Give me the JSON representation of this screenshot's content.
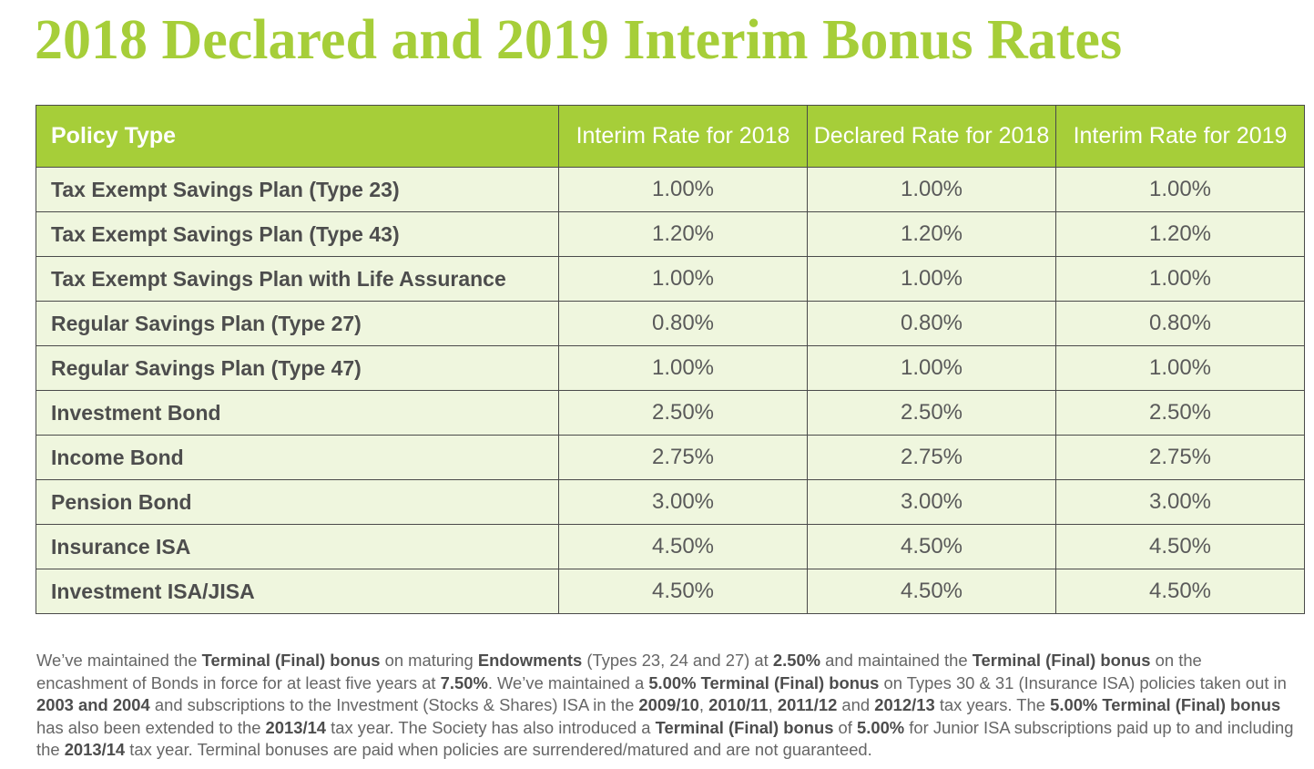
{
  "title": "2018 Declared and 2019 Interim Bonus Rates",
  "table": {
    "headers": [
      "Policy Type",
      "Interim Rate for 2018",
      "Declared Rate for 2018",
      "Interim Rate for 2019"
    ],
    "rows": [
      [
        "Tax Exempt Savings Plan (Type 23)",
        "1.00%",
        "1.00%",
        "1.00%"
      ],
      [
        "Tax Exempt Savings Plan (Type 43)",
        "1.20%",
        "1.20%",
        "1.20%"
      ],
      [
        "Tax Exempt Savings Plan with Life Assurance",
        "1.00%",
        "1.00%",
        "1.00%"
      ],
      [
        "Regular Savings Plan (Type 27)",
        "0.80%",
        "0.80%",
        "0.80%"
      ],
      [
        "Regular Savings Plan (Type 47)",
        "1.00%",
        "1.00%",
        "1.00%"
      ],
      [
        "Investment Bond",
        "2.50%",
        "2.50%",
        "2.50%"
      ],
      [
        "Income Bond",
        "2.75%",
        "2.75%",
        "2.75%"
      ],
      [
        "Pension Bond",
        "3.00%",
        "3.00%",
        "3.00%"
      ],
      [
        "Insurance ISA",
        "4.50%",
        "4.50%",
        "4.50%"
      ],
      [
        "Investment ISA/JISA",
        "4.50%",
        "4.50%",
        "4.50%"
      ]
    ]
  },
  "footnote": {
    "segments": [
      {
        "text": "We’ve maintained the ",
        "bold": false
      },
      {
        "text": "Terminal (Final) bonus",
        "bold": true
      },
      {
        "text": " on maturing ",
        "bold": false
      },
      {
        "text": "Endowments",
        "bold": true
      },
      {
        "text": " (Types 23, 24 and 27) at ",
        "bold": false
      },
      {
        "text": "2.50%",
        "bold": true
      },
      {
        "text": " and maintained the ",
        "bold": false
      },
      {
        "text": "Terminal (Final) bonus",
        "bold": true
      },
      {
        "text": " on the encashment of Bonds in force for at least five years at ",
        "bold": false
      },
      {
        "text": "7.50%",
        "bold": true
      },
      {
        "text": ". We’ve maintained a ",
        "bold": false
      },
      {
        "text": "5.00% Terminal (Final) bonus",
        "bold": true
      },
      {
        "text": " on Types 30 & 31 (Insurance ISA) policies taken out in ",
        "bold": false
      },
      {
        "text": "2003 and 2004",
        "bold": true
      },
      {
        "text": " and subscriptions to the Investment (Stocks & Shares) ISA in the ",
        "bold": false
      },
      {
        "text": "2009/10",
        "bold": true
      },
      {
        "text": ", ",
        "bold": false
      },
      {
        "text": "2010/11",
        "bold": true
      },
      {
        "text": ", ",
        "bold": false
      },
      {
        "text": "2011/12",
        "bold": true
      },
      {
        "text": " and ",
        "bold": false
      },
      {
        "text": "2012/13",
        "bold": true
      },
      {
        "text": " tax years. The ",
        "bold": false
      },
      {
        "text": "5.00% Terminal (Final) bonus",
        "bold": true
      },
      {
        "text": " has also been extended to the ",
        "bold": false
      },
      {
        "text": "2013/14",
        "bold": true
      },
      {
        "text": " tax year. The Society has also introduced a ",
        "bold": false
      },
      {
        "text": "Terminal (Final) bonus",
        "bold": true
      },
      {
        "text": " of ",
        "bold": false
      },
      {
        "text": "5.00%",
        "bold": true
      },
      {
        "text": " for Junior ISA subscriptions paid up to and including the ",
        "bold": false
      },
      {
        "text": "2013/14",
        "bold": true
      },
      {
        "text": " tax year. Terminal bonuses are paid when policies are surrendered/matured and are not guaranteed.",
        "bold": false
      }
    ]
  },
  "colors": {
    "brand_green": "#a6ce39",
    "row_background": "#eff6de",
    "body_text": "#666666"
  }
}
